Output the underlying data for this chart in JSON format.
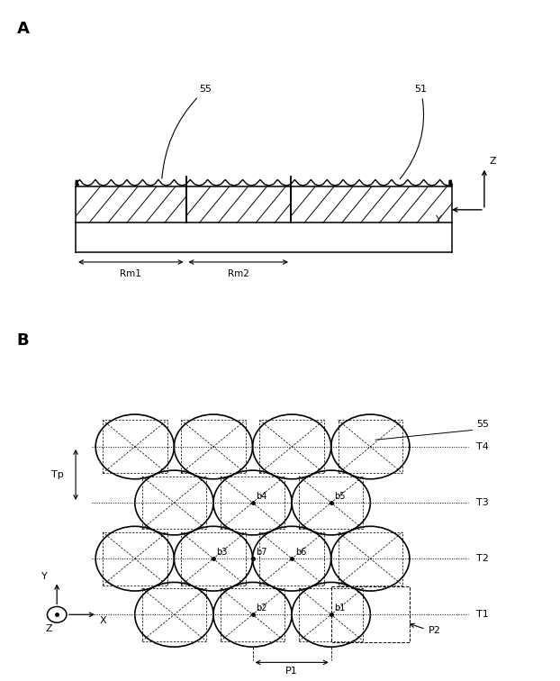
{
  "bg_color": "#ffffff",
  "line_color": "#000000",
  "fig_width": 6.22,
  "fig_height": 7.56,
  "lc": "#000000",
  "panel_A_label": "A",
  "panel_B_label": "B",
  "label_55_A": "55",
  "label_51_A": "51",
  "label_Rm1": "Rm1",
  "label_Rm2": "Rm2",
  "label_Z_A": "Z",
  "label_Y_A": "Y",
  "label_55_B": "55",
  "label_T1": "T1",
  "label_T2": "T2",
  "label_T3": "T3",
  "label_T4": "T4",
  "label_Tp": "Tp",
  "label_P1": "P1",
  "label_P2": "P2",
  "label_b1": "b1",
  "label_b2": "b2",
  "label_b3": "b3",
  "label_b4": "b4",
  "label_b5": "b5",
  "label_b6": "b6",
  "label_b7": "b7",
  "label_Y_B": "Y",
  "label_X_B": "X",
  "label_Z_B": "Z"
}
